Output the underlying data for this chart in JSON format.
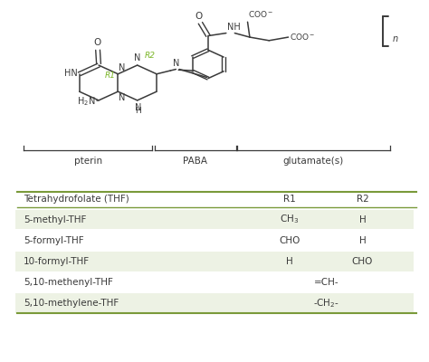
{
  "bg_color": "#ffffff",
  "table_header": [
    "Tetrahydrofolate (THF)",
    "R1",
    "R2"
  ],
  "table_rows": [
    [
      "5-methyl-THF",
      "CH$_3$",
      "H"
    ],
    [
      "5-formyl-THF",
      "CHO",
      "H"
    ],
    [
      "10-formyl-THF",
      "H",
      "CHO"
    ],
    [
      "5,10-methenyl-THF",
      "=CH-",
      ""
    ],
    [
      "5,10-methylene-THF",
      "-CH$_2$-",
      ""
    ]
  ],
  "row_bg_colors": [
    "#edf2e4",
    "#ffffff",
    "#edf2e4",
    "#ffffff",
    "#edf2e4"
  ],
  "header_line_color": "#7a9a3a",
  "text_color": "#3a3a3a",
  "green_color": "#7ab526",
  "section_labels": [
    "pterin",
    "PABA",
    "glutamate(s)"
  ]
}
